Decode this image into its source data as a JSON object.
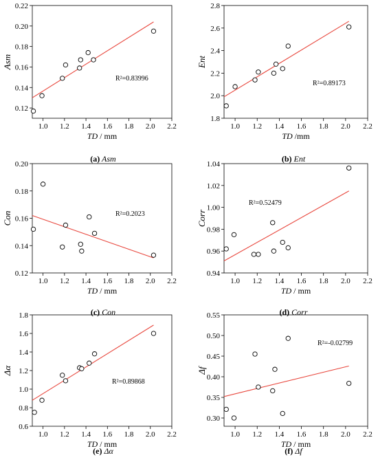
{
  "chart_data": [
    {
      "type": "scatter",
      "caption_letter": "(a)",
      "caption_name": "Asm",
      "xlabel_italic": "TD",
      "xlabel_unit": " / mm",
      "ylabel": "Asm",
      "xlim": [
        0.9,
        2.2
      ],
      "xticks": [
        1.0,
        1.2,
        1.4,
        1.6,
        1.8,
        2.0,
        2.2
      ],
      "ylim": [
        0.11,
        0.22
      ],
      "yticks": [
        0.12,
        0.14,
        0.16,
        0.18,
        0.2,
        0.22
      ],
      "points": [
        [
          0.91,
          0.117
        ],
        [
          0.99,
          0.132
        ],
        [
          1.18,
          0.149
        ],
        [
          1.21,
          0.162
        ],
        [
          1.34,
          0.159
        ],
        [
          1.35,
          0.167
        ],
        [
          1.42,
          0.174
        ],
        [
          1.47,
          0.167
        ],
        [
          2.03,
          0.195
        ]
      ],
      "trend": [
        [
          0.9,
          0.13
        ],
        [
          2.03,
          0.204
        ]
      ],
      "r2_label": "R²=0.83996"
    },
    {
      "type": "scatter",
      "caption_letter": "(b)",
      "caption_name": "Ent",
      "xlabel_italic": "TD",
      "xlabel_unit": " /mm",
      "ylabel": "Ent",
      "xlim": [
        0.9,
        2.2
      ],
      "xticks": [
        1.0,
        1.2,
        1.4,
        1.6,
        1.8,
        2.0,
        2.2
      ],
      "ylim": [
        1.8,
        2.8
      ],
      "yticks": [
        1.8,
        2.0,
        2.2,
        2.4,
        2.6,
        2.8
      ],
      "points": [
        [
          0.92,
          1.91
        ],
        [
          1.0,
          2.08
        ],
        [
          1.18,
          2.14
        ],
        [
          1.21,
          2.21
        ],
        [
          1.35,
          2.2
        ],
        [
          1.37,
          2.28
        ],
        [
          1.43,
          2.24
        ],
        [
          1.48,
          2.44
        ],
        [
          2.03,
          2.61
        ]
      ],
      "trend": [
        [
          0.9,
          1.99
        ],
        [
          2.03,
          2.66
        ]
      ],
      "r2_label": "R²=0.89173"
    },
    {
      "type": "scatter",
      "caption_letter": "(c)",
      "caption_name": "Con",
      "xlabel_italic": "TD",
      "xlabel_unit": " / mm",
      "ylabel": "Con",
      "xlim": [
        0.9,
        2.2
      ],
      "xticks": [
        1.0,
        1.2,
        1.4,
        1.6,
        1.8,
        2.0,
        2.2
      ],
      "ylim": [
        0.12,
        0.2
      ],
      "yticks": [
        0.12,
        0.14,
        0.16,
        0.18,
        0.2
      ],
      "points": [
        [
          0.91,
          0.152
        ],
        [
          1.0,
          0.185
        ],
        [
          1.18,
          0.139
        ],
        [
          1.21,
          0.155
        ],
        [
          1.35,
          0.141
        ],
        [
          1.36,
          0.136
        ],
        [
          1.43,
          0.161
        ],
        [
          1.48,
          0.149
        ],
        [
          2.03,
          0.133
        ]
      ],
      "trend": [
        [
          0.9,
          0.162
        ],
        [
          2.03,
          0.131
        ]
      ],
      "r2_label": "R²=0.2023"
    },
    {
      "type": "scatter",
      "caption_letter": "(d)",
      "caption_name": "Corr",
      "xlabel_italic": "TD",
      "xlabel_unit": " / mm",
      "ylabel": "Corr",
      "xlim": [
        0.9,
        2.2
      ],
      "xticks": [
        1.0,
        1.2,
        1.4,
        1.6,
        1.8,
        2.0,
        2.2
      ],
      "ylim": [
        0.94,
        1.04
      ],
      "yticks": [
        0.94,
        0.96,
        0.98,
        1.0,
        1.02,
        1.04
      ],
      "points": [
        [
          0.92,
          0.962
        ],
        [
          0.99,
          0.975
        ],
        [
          1.17,
          0.957
        ],
        [
          1.21,
          0.957
        ],
        [
          1.34,
          0.986
        ],
        [
          1.35,
          0.96
        ],
        [
          1.43,
          0.968
        ],
        [
          1.48,
          0.963
        ],
        [
          2.03,
          1.036
        ]
      ],
      "trend": [
        [
          0.9,
          0.951
        ],
        [
          2.03,
          1.015
        ]
      ],
      "r2_label": "R²=0.52479"
    },
    {
      "type": "scatter",
      "caption_letter": "(e)",
      "caption_name": "Δα",
      "xlabel_italic": "TD",
      "xlabel_unit": " / mm",
      "ylabel": "Δα",
      "xlim": [
        0.9,
        2.2
      ],
      "xticks": [
        1.0,
        1.2,
        1.4,
        1.6,
        1.8,
        2.0,
        2.2
      ],
      "ylim": [
        0.6,
        1.8
      ],
      "yticks": [
        0.6,
        0.8,
        1.0,
        1.2,
        1.4,
        1.6,
        1.8
      ],
      "points": [
        [
          0.92,
          0.75
        ],
        [
          0.99,
          0.88
        ],
        [
          1.18,
          1.15
        ],
        [
          1.21,
          1.09
        ],
        [
          1.34,
          1.23
        ],
        [
          1.36,
          1.22
        ],
        [
          1.43,
          1.28
        ],
        [
          1.48,
          1.38
        ],
        [
          2.03,
          1.6
        ]
      ],
      "trend": [
        [
          0.9,
          0.88
        ],
        [
          2.03,
          1.69
        ]
      ],
      "r2_label": "R²=0.89868"
    },
    {
      "type": "scatter",
      "caption_letter": "(f)",
      "caption_name": "Δf",
      "xlabel_italic": "TD",
      "xlabel_unit": " / mm",
      "ylabel": "Δf",
      "xlim": [
        0.9,
        2.2
      ],
      "xticks": [
        1.0,
        1.2,
        1.4,
        1.6,
        1.8,
        2.0,
        2.2
      ],
      "ylim": [
        0.28,
        0.55
      ],
      "yticks": [
        0.3,
        0.35,
        0.4,
        0.45,
        0.5,
        0.55
      ],
      "points": [
        [
          0.92,
          0.321
        ],
        [
          0.99,
          0.3
        ],
        [
          1.18,
          0.455
        ],
        [
          1.21,
          0.375
        ],
        [
          1.34,
          0.366
        ],
        [
          1.36,
          0.418
        ],
        [
          1.43,
          0.311
        ],
        [
          1.48,
          0.493
        ],
        [
          2.03,
          0.384
        ]
      ],
      "trend": [
        [
          0.9,
          0.352
        ],
        [
          2.03,
          0.426
        ]
      ],
      "r2_label": "R²=-0.02799"
    }
  ],
  "colors": {
    "trend_line": "#e8463c",
    "axis": "#000000",
    "marker": "#000000"
  }
}
